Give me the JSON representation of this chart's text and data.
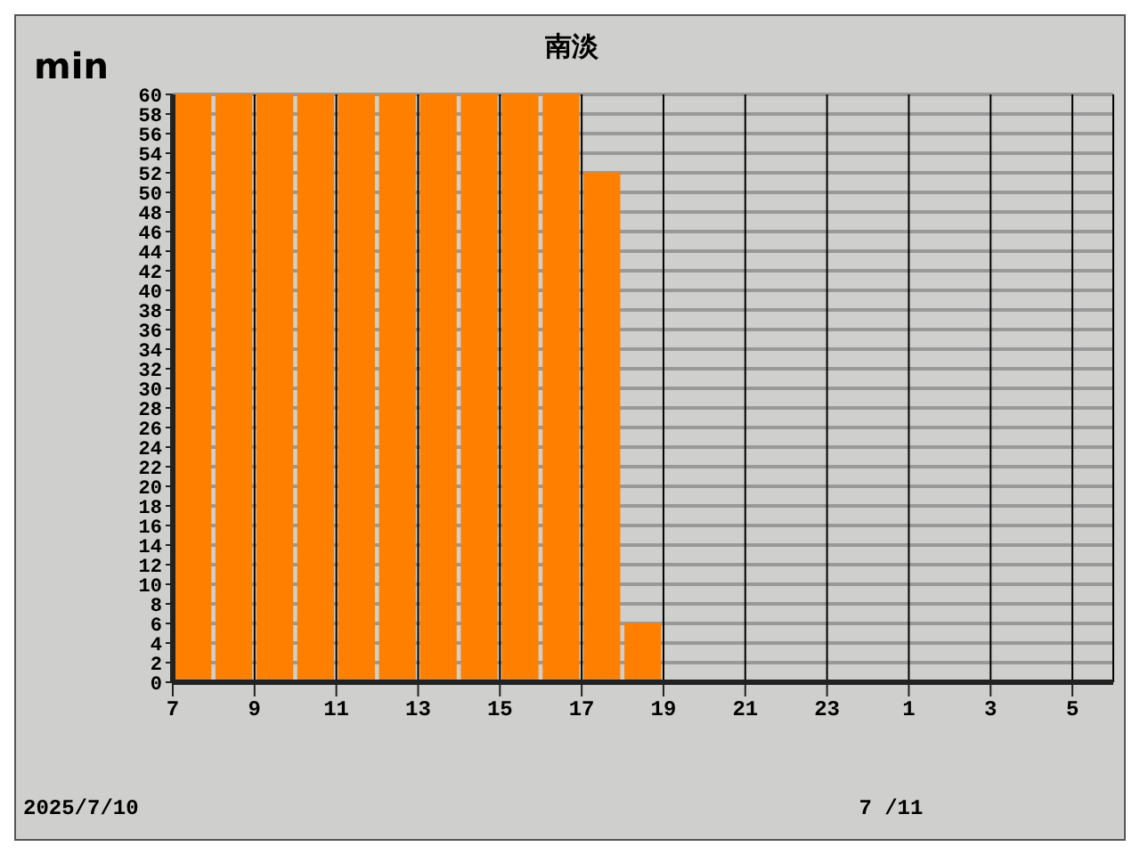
{
  "chart_data": {
    "type": "histogram",
    "title": "南淡",
    "ylabel": "min",
    "bins": [
      "2025-07-10T07:00",
      "2025-07-10T08:00",
      "2025-07-10T09:00",
      "2025-07-10T10:00",
      "2025-07-10T11:00",
      "2025-07-10T12:00",
      "2025-07-10T13:00",
      "2025-07-10T14:00",
      "2025-07-10T15:00",
      "2025-07-10T16:00",
      "2025-07-10T17:00",
      "2025-07-10T18:00",
      "2025-07-10T19:00",
      "2025-07-10T20:00",
      "2025-07-10T21:00",
      "2025-07-10T22:00",
      "2025-07-10T23:00",
      "2025-07-11T00:00",
      "2025-07-11T01:00",
      "2025-07-11T02:00",
      "2025-07-11T03:00",
      "2025-07-11T04:00",
      "2025-07-11T05:00",
      "2025-07-11T06:00"
    ],
    "values": [
      60,
      60,
      60,
      60,
      60,
      60,
      60,
      60,
      60,
      60,
      52,
      6,
      0,
      0,
      0,
      0,
      0,
      0,
      0,
      0,
      0,
      0,
      0
    ],
    "color": "#ff8000",
    "xlim": [
      "2025-07-10T07:00",
      "2025-07-11T06:00"
    ],
    "xticks": [
      {
        "value": "2025-07-10T07:00",
        "label": "7"
      },
      {
        "value": "2025-07-10T09:00",
        "label": "9"
      },
      {
        "value": "2025-07-10T11:00",
        "label": "11"
      },
      {
        "value": "2025-07-10T13:00",
        "label": "13"
      },
      {
        "value": "2025-07-10T15:00",
        "label": "15"
      },
      {
        "value": "2025-07-10T17:00",
        "label": "17"
      },
      {
        "value": "2025-07-10T19:00",
        "label": "19"
      },
      {
        "value": "2025-07-10T21:00",
        "label": "21"
      },
      {
        "value": "2025-07-10T23:00",
        "label": "23"
      },
      {
        "value": "2025-07-11T01:00",
        "label": "1"
      },
      {
        "value": "2025-07-11T03:00",
        "label": "3"
      },
      {
        "value": "2025-07-11T05:00",
        "label": "5"
      }
    ],
    "ylim": [
      0,
      60
    ],
    "yticks": [
      0,
      2,
      4,
      6,
      8,
      10,
      12,
      14,
      16,
      18,
      20,
      22,
      24,
      26,
      28,
      30,
      32,
      34,
      36,
      38,
      40,
      42,
      44,
      46,
      48,
      50,
      52,
      54,
      56,
      58,
      60
    ],
    "grid": true,
    "annotations": [
      "2025/7/10",
      "7 /11"
    ]
  }
}
